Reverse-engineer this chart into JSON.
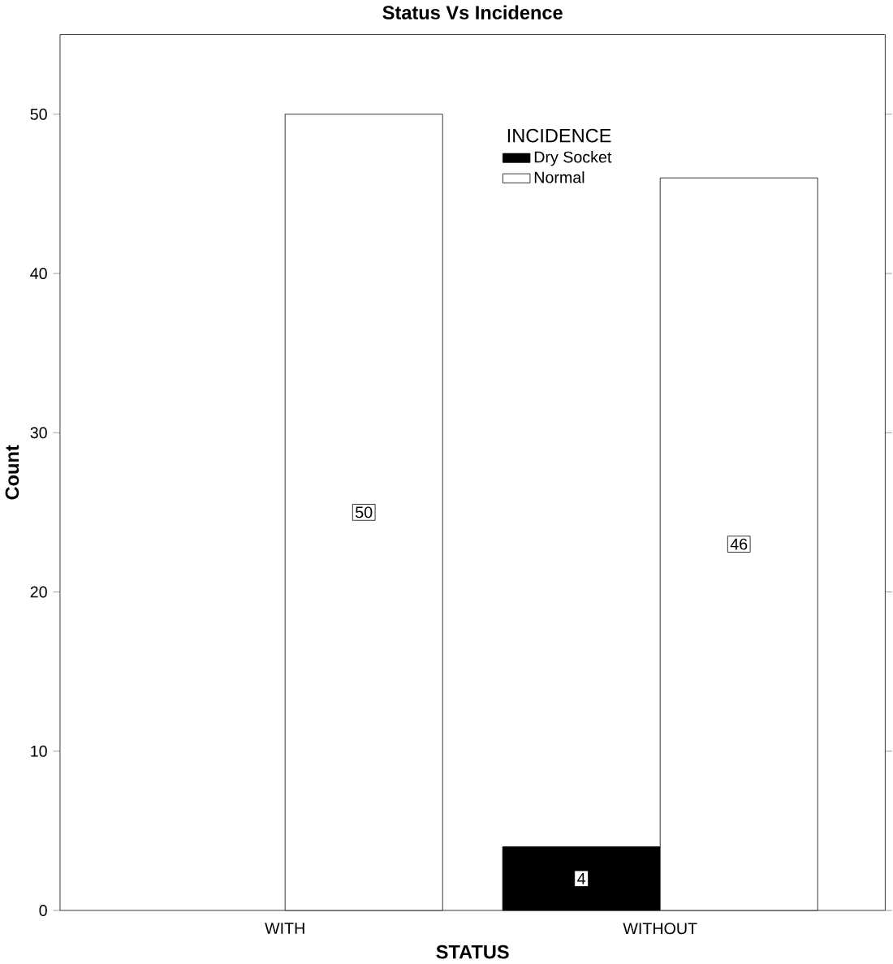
{
  "chart_data": {
    "type": "bar",
    "title": "Status Vs Incidence",
    "xlabel": "STATUS",
    "ylabel": "Count",
    "legend_title": "INCIDENCE",
    "categories": [
      "WITH",
      "WITHOUT"
    ],
    "series": [
      {
        "name": "Dry Socket",
        "color": "#000000",
        "values": [
          null,
          4
        ]
      },
      {
        "name": "Normal",
        "color": "#ffffff",
        "values": [
          50,
          46
        ]
      }
    ],
    "ylim": [
      0,
      55
    ],
    "yticks": [
      0,
      10,
      20,
      30,
      40,
      50
    ],
    "data_labels": true,
    "legend": "top right",
    "grid": false
  }
}
